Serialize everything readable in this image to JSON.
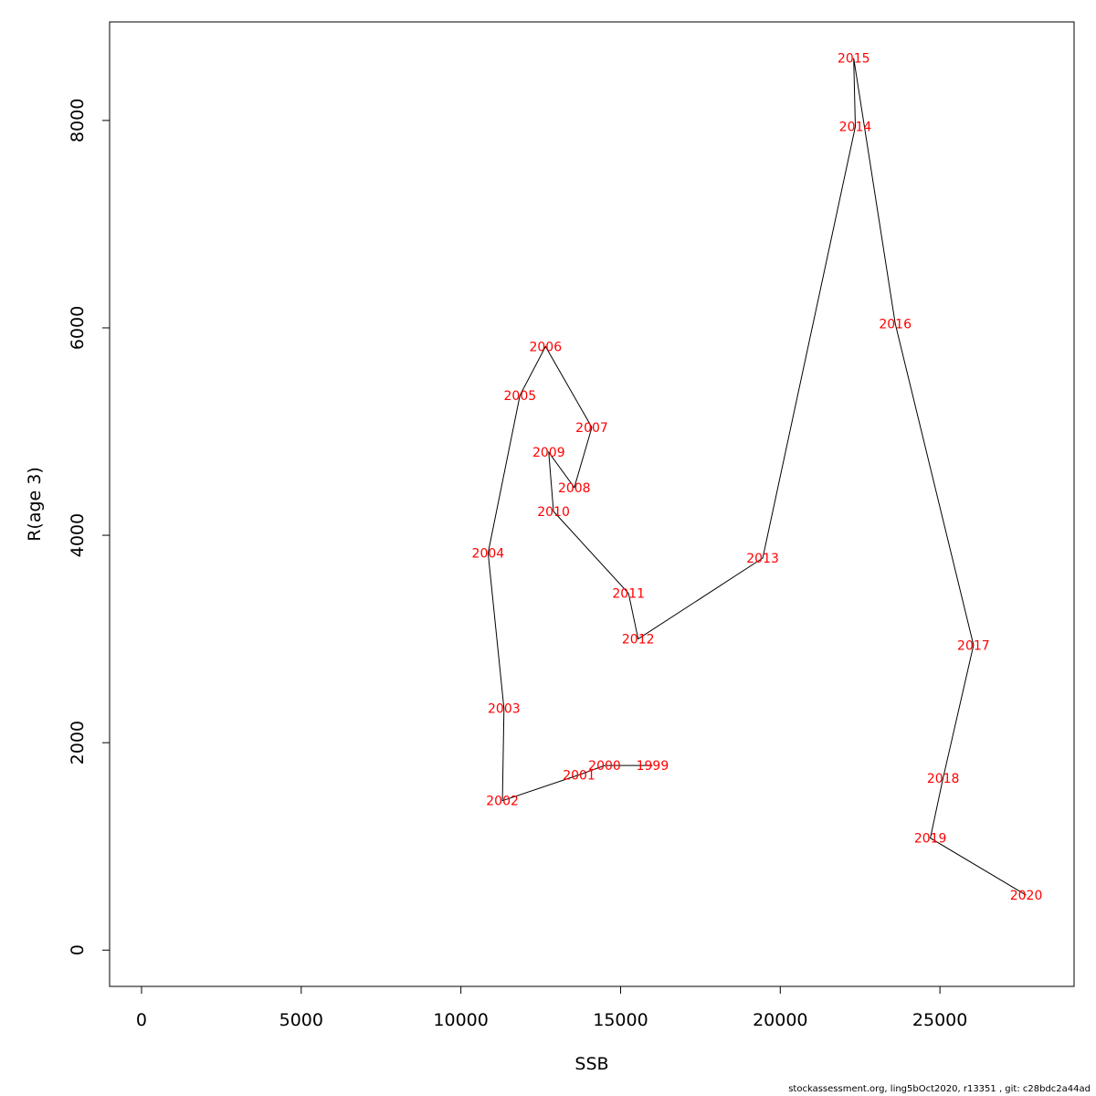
{
  "chart_data": {
    "type": "line",
    "xlabel": "SSB",
    "ylabel": "R(age 3)",
    "xlim": [
      -1000,
      29200
    ],
    "ylim": [
      -350,
      8950
    ],
    "xticks": [
      0,
      5000,
      10000,
      15000,
      20000,
      25000
    ],
    "yticks": [
      0,
      2000,
      4000,
      6000,
      8000
    ],
    "xtick_labels": [
      "0",
      "5000",
      "10000",
      "15000",
      "20000",
      "25000"
    ],
    "ytick_labels": [
      "0",
      "2000",
      "4000",
      "6000",
      "8000"
    ],
    "grid": false,
    "line_color": "#000000",
    "label_color": "#ff0000",
    "points": [
      {
        "label": "1999",
        "x": 16000,
        "y": 1780
      },
      {
        "label": "2000",
        "x": 14500,
        "y": 1780
      },
      {
        "label": "2001",
        "x": 13700,
        "y": 1690
      },
      {
        "label": "2002",
        "x": 11300,
        "y": 1440
      },
      {
        "label": "2003",
        "x": 11350,
        "y": 2330
      },
      {
        "label": "2004",
        "x": 10850,
        "y": 3830
      },
      {
        "label": "2005",
        "x": 11850,
        "y": 5350
      },
      {
        "label": "2006",
        "x": 12650,
        "y": 5820
      },
      {
        "label": "2007",
        "x": 14100,
        "y": 5040
      },
      {
        "label": "2008",
        "x": 13550,
        "y": 4460
      },
      {
        "label": "2009",
        "x": 12750,
        "y": 4800
      },
      {
        "label": "2010",
        "x": 12900,
        "y": 4230
      },
      {
        "label": "2011",
        "x": 15250,
        "y": 3440
      },
      {
        "label": "2012",
        "x": 15550,
        "y": 3000
      },
      {
        "label": "2013",
        "x": 19450,
        "y": 3780
      },
      {
        "label": "2014",
        "x": 22350,
        "y": 7940
      },
      {
        "label": "2015",
        "x": 22300,
        "y": 8600
      },
      {
        "label": "2016",
        "x": 23600,
        "y": 6040
      },
      {
        "label": "2017",
        "x": 26050,
        "y": 2940
      },
      {
        "label": "2018",
        "x": 25100,
        "y": 1660
      },
      {
        "label": "2019",
        "x": 24700,
        "y": 1080
      },
      {
        "label": "2020",
        "x": 27700,
        "y": 530
      }
    ]
  },
  "footer": "stockassessment.org, ling5bOct2020, r13351 , git: c28bdc2a44ad"
}
